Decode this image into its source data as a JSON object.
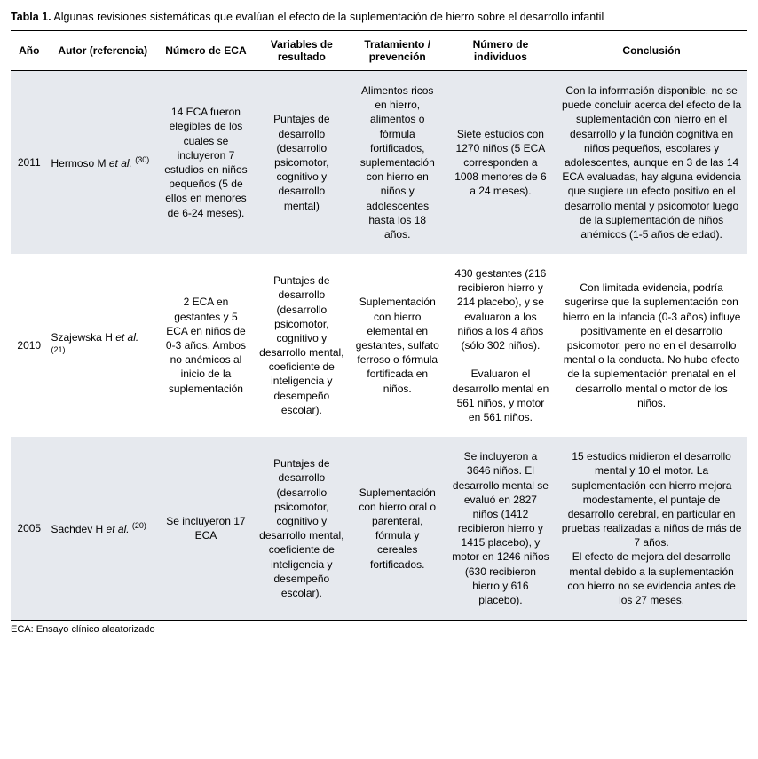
{
  "caption_label": "Tabla 1.",
  "caption_text": "Algunas revisiones sistemáticas que evalúan el efecto de la suplementación de hierro sobre el desarrollo infantil",
  "columns": [
    "Año",
    "Autor (referencia)",
    "Número de ECA",
    "Variables de resultado",
    "Tratamiento / prevención",
    "Número de individuos",
    "Conclusión"
  ],
  "col_widths_pct": [
    5,
    15,
    13,
    13,
    13,
    15,
    26
  ],
  "rows": [
    {
      "year": "2011",
      "author": "Hermoso M",
      "ref": "(30)",
      "eca": "14 ECA fueron elegibles de los cuales se incluyeron 7 estudios en niños pequeños (5 de ellos en menores de 6-24 meses).",
      "vars": "Puntajes de desarrollo (desarrollo psicomotor, cognitivo y desarrollo mental)",
      "treatment": "Alimentos ricos en hierro, alimentos o fórmula fortificados, suplementación con hierro en niños y adolescentes hasta los 18 años.",
      "n": "Siete estudios con 1270 niños (5 ECA corresponden a 1008 menores de 6 a 24 meses).",
      "conclusion": "Con la información disponible, no se puede concluir acerca del efecto de la suplementación con hierro en el desarrollo y la función cognitiva en niños pequeños, escolares y adolescentes, aunque en 3 de las 14 ECA evaluadas, hay alguna evidencia que sugiere un efecto positivo en el desarrollo mental y psicomotor luego de la suplementación de niños anémicos (1-5 años de edad)."
    },
    {
      "year": "2010",
      "author": "Szajewska H",
      "ref": "(21)",
      "eca": "2 ECA en gestantes y 5 ECA en niños de 0-3 años. Ambos no anémicos al inicio de la suplementación",
      "vars": "Puntajes de desarrollo (desarrollo psicomotor, cognitivo y desarrollo mental, coeficiente de inteligencia y desempeño escolar).",
      "treatment": "Suplementación con hierro elemental en gestantes, sulfato ferroso o fórmula fortificada en niños.",
      "n_part1": "430 gestantes (216 recibieron hierro y 214 placebo), y se evaluaron a los niños a los 4 años (sólo 302 niños).",
      "n_part2": "Evaluaron el desarrollo mental en 561 niños, y motor en 561 niños.",
      "conclusion": "Con limitada evidencia, podría sugerirse que la suplementación con hierro en la infancia (0-3 años) influye positivamente en el desarrollo psicomotor, pero no en el desarrollo mental o la conducta. No hubo efecto de la suplementación prenatal en el desarrollo mental o motor de los niños."
    },
    {
      "year": "2005",
      "author": "Sachdev H",
      "ref": "(20)",
      "eca": "Se incluyeron 17 ECA",
      "vars": "Puntajes de desarrollo (desarrollo psicomotor, cognitivo y desarrollo mental, coeficiente de inteligencia y desempeño escolar).",
      "treatment": "Suplementación con hierro oral o parenteral, fórmula y cereales fortificados.",
      "n": "Se incluyeron a 3646 niños. El desarrollo mental se evaluó en 2827 niños (1412 recibieron hierro y 1415 placebo), y motor en 1246 niños (630 recibieron hierro y 616 placebo).",
      "conclusion_part1": "15 estudios midieron el desarrollo mental y 10 el motor. La suplementación con hierro mejora modestamente, el puntaje de desarrollo cerebral, en particular en pruebas realizadas a niños de más de 7 años.",
      "conclusion_part2": "El efecto de mejora del desarrollo mental debido a la suplementación con hierro no se evidencia antes de los 27 meses."
    }
  ],
  "footnote": "ECA: Ensayo clínico aleatorizado",
  "colors": {
    "band_bg": "#e6e9ee",
    "text": "#000000",
    "page_bg": "#ffffff"
  },
  "font_size_pt": 12
}
